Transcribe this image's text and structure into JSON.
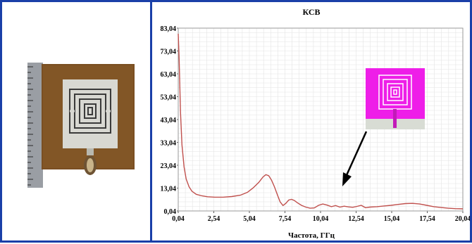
{
  "photo": {
    "description_icon": "antenna-photo",
    "board_color": "#7a4f22",
    "metal_color": "#d8d8d2"
  },
  "chart_data": {
    "type": "line",
    "title": "КСВ",
    "xlabel": "Частота, ГГц",
    "ylabel": "",
    "x_ticks": [
      "0,04",
      "2,54",
      "5,04",
      "7,54",
      "10,04",
      "12,54",
      "15,04",
      "17,54",
      "20,04"
    ],
    "y_ticks": [
      "0,04",
      "13,04",
      "23,04",
      "33,04",
      "43,04",
      "53,04",
      "63,04",
      "73,04",
      "83,04"
    ],
    "xlim": [
      0.04,
      20.04
    ],
    "ylim": [
      0.04,
      83.04
    ],
    "grid": true,
    "series": [
      {
        "color": "#c0504d",
        "x": [
          0.04,
          0.1,
          0.2,
          0.3,
          0.45,
          0.6,
          0.8,
          1.0,
          1.3,
          1.7,
          2.1,
          2.6,
          3.2,
          3.8,
          4.4,
          4.9,
          5.3,
          5.7,
          6.0,
          6.2,
          6.4,
          6.6,
          6.8,
          7.0,
          7.2,
          7.4,
          7.6,
          7.8,
          8.0,
          8.2,
          8.4,
          8.7,
          9.0,
          9.3,
          9.6,
          9.9,
          10.2,
          10.5,
          10.8,
          11.1,
          11.4,
          11.7,
          12.0,
          12.3,
          12.6,
          12.9,
          13.2,
          13.5,
          14.0,
          14.5,
          15.0,
          15.5,
          16.0,
          16.5,
          17.0,
          17.5,
          18.0,
          18.5,
          19.0,
          19.5,
          20.04
        ],
        "y": [
          80.5,
          70.0,
          45.0,
          30.0,
          20.0,
          14.5,
          11.0,
          9.0,
          7.6,
          6.9,
          6.5,
          6.3,
          6.3,
          6.6,
          7.2,
          8.5,
          10.5,
          13.0,
          15.5,
          16.5,
          16.0,
          14.0,
          11.0,
          7.5,
          4.2,
          2.5,
          3.5,
          5.0,
          5.3,
          4.8,
          3.8,
          2.6,
          1.8,
          1.3,
          1.4,
          2.6,
          3.2,
          2.7,
          2.0,
          2.5,
          1.8,
          2.2,
          1.9,
          1.7,
          2.1,
          2.6,
          1.5,
          1.8,
          2.0,
          2.3,
          2.6,
          3.0,
          3.4,
          3.5,
          3.2,
          2.6,
          2.0,
          1.6,
          1.3,
          1.1,
          1.0
        ]
      }
    ],
    "inset": {
      "background": "#ee1ee8",
      "feed_color": "#c21ab8",
      "ground_color": "#d8dcd4"
    },
    "arrow_color": "#000000"
  }
}
